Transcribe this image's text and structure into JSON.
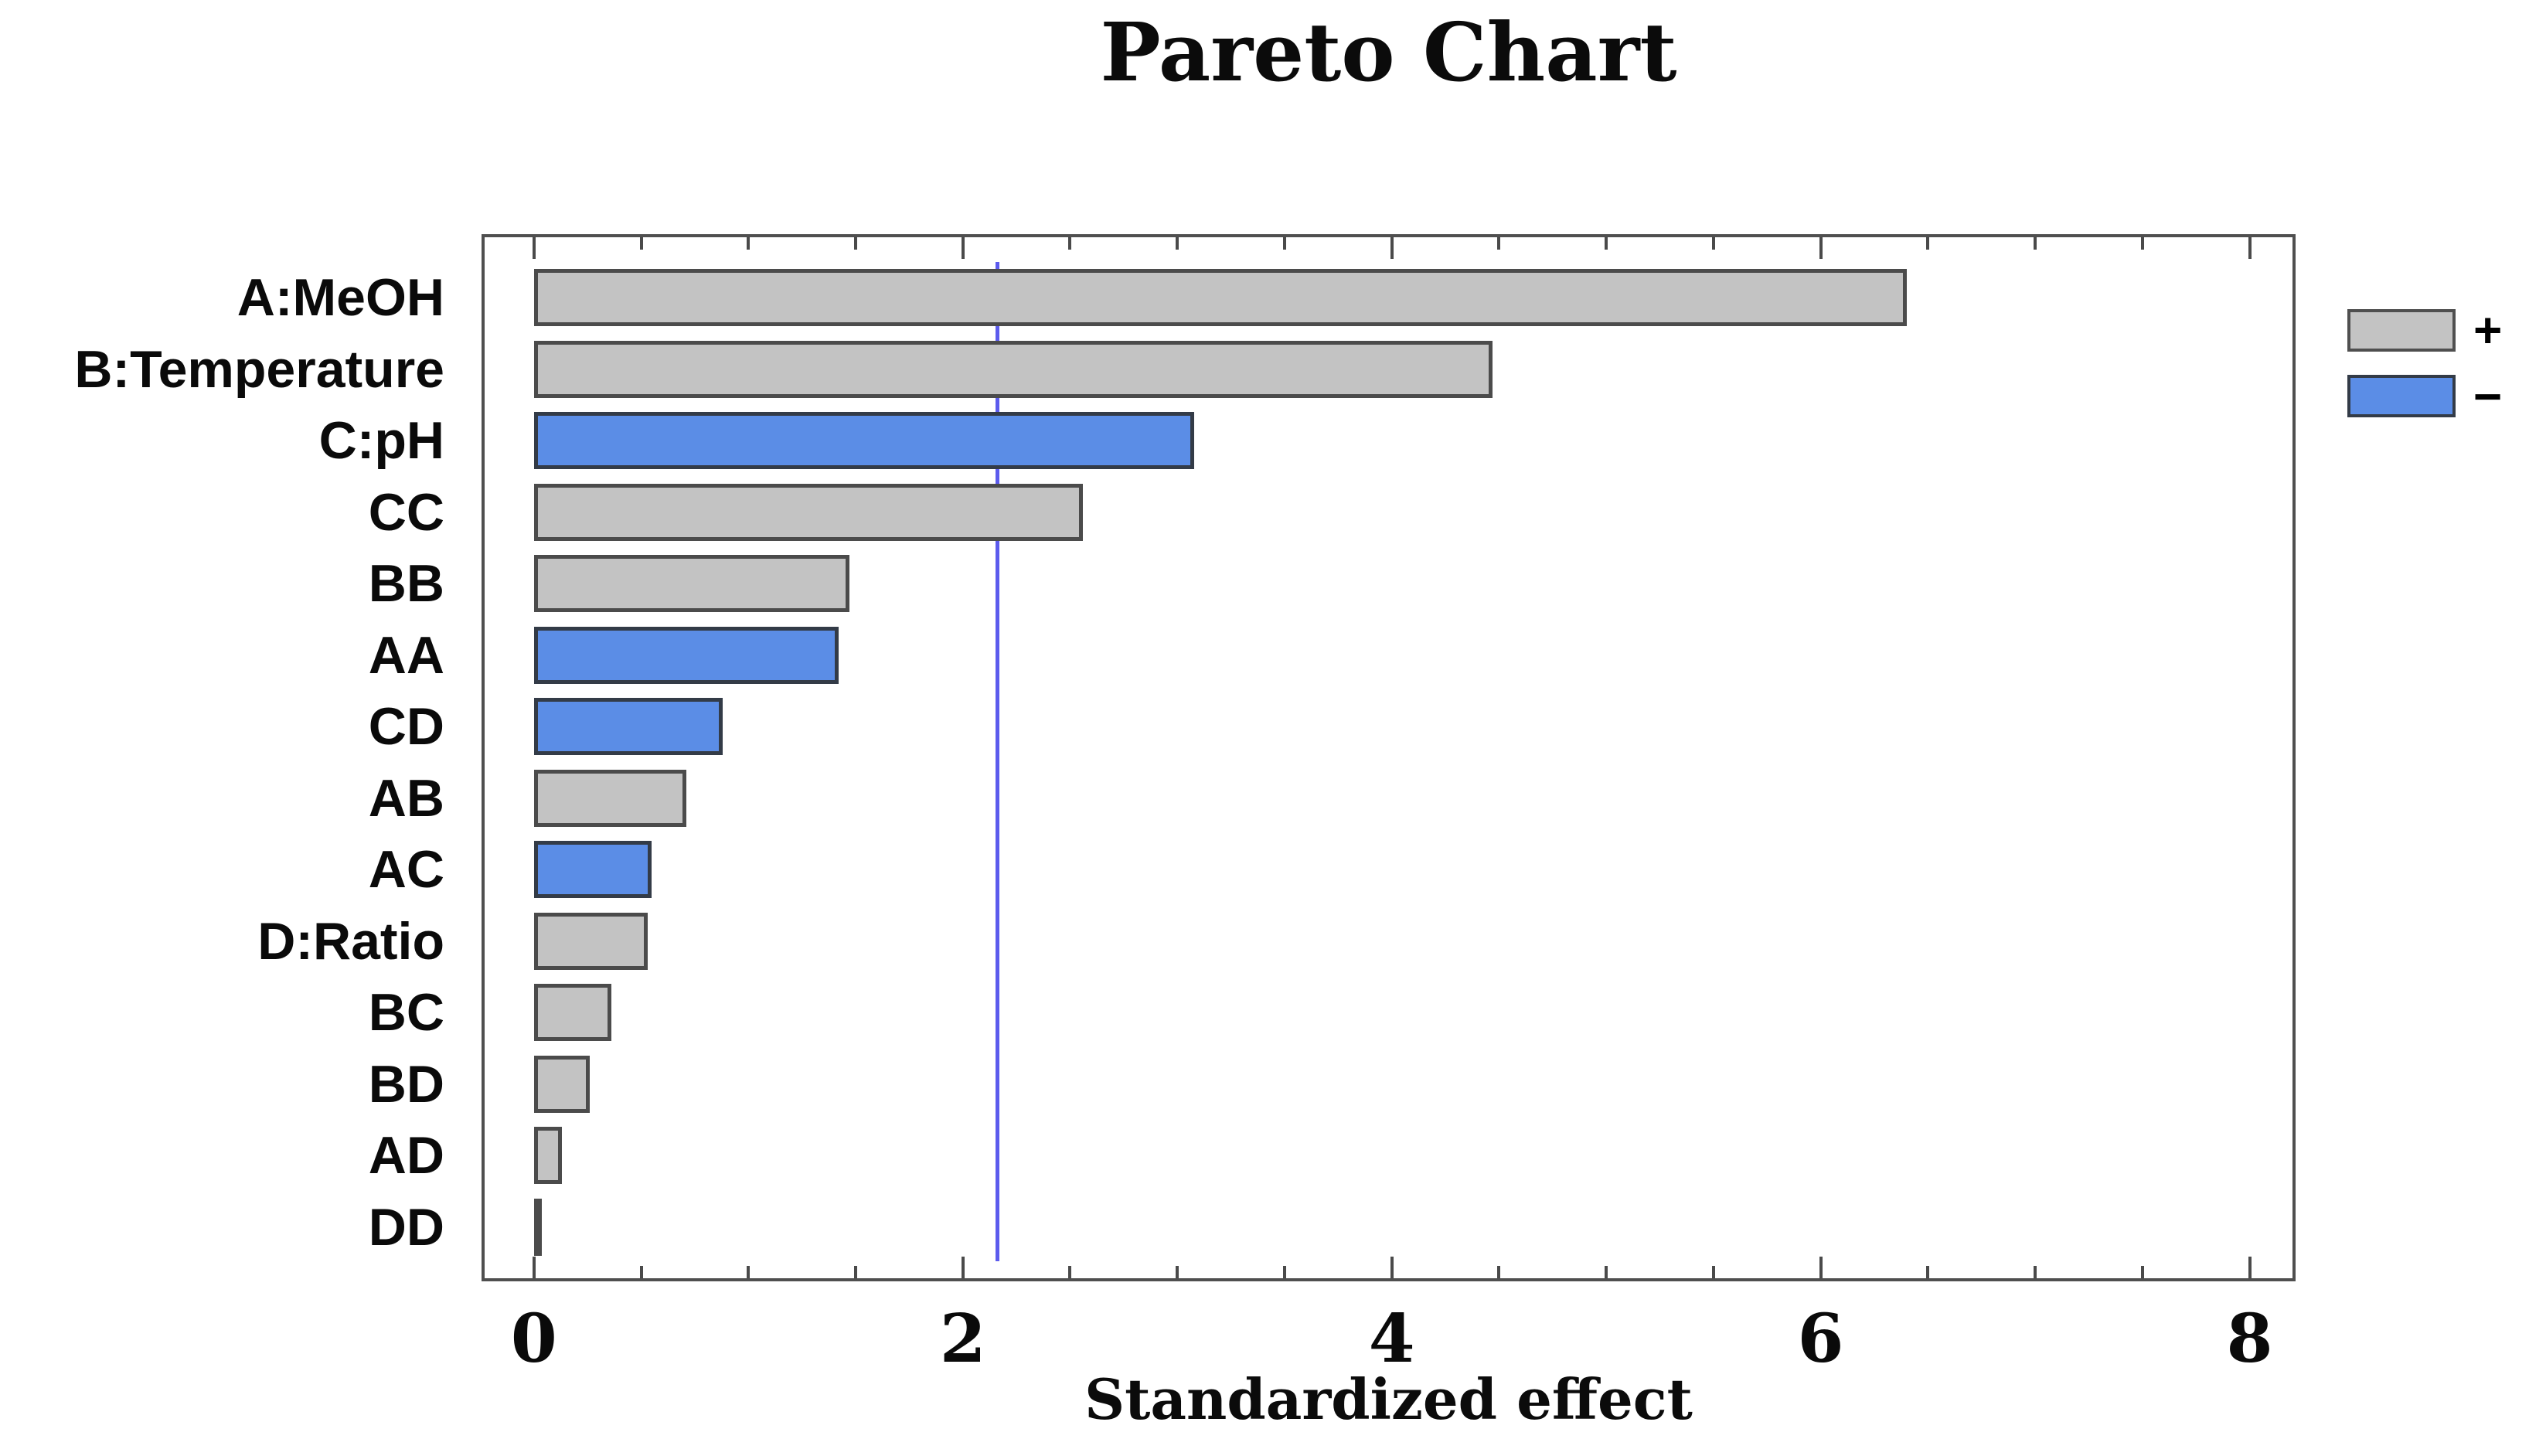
{
  "chart_data": {
    "type": "bar",
    "orientation": "horizontal",
    "title": "Pareto Chart",
    "xlabel": "Standardized effect",
    "categories": [
      "A:MeOH",
      "B:Temperature",
      "C:pH",
      "CC",
      "BB",
      "AA",
      "CD",
      "AB",
      "AC",
      "D:Ratio",
      "BC",
      "BD",
      "AD",
      "DD"
    ],
    "values": [
      6.4,
      4.47,
      3.08,
      2.56,
      1.47,
      1.42,
      0.88,
      0.71,
      0.55,
      0.53,
      0.36,
      0.26,
      0.13,
      0.015
    ],
    "signs": [
      "+",
      "+",
      "-",
      "+",
      "+",
      "-",
      "-",
      "+",
      "-",
      "+",
      "+",
      "+",
      "+",
      "+"
    ],
    "reference_line": 2.16,
    "xlim": [
      -0.23,
      8.2
    ],
    "x_major_ticks": [
      0,
      2,
      4,
      6,
      8
    ],
    "x_minor_step": 0.5,
    "grid": false,
    "legend": {
      "position": "right-top",
      "items": [
        {
          "label": "+",
          "color": "#c3c3c3"
        },
        {
          "label": "−",
          "color": "#5b8de6"
        }
      ]
    },
    "colors": {
      "positive_fill": "#c3c3c3",
      "negative_fill": "#5b8de6",
      "bar_border": "#3c3c3c",
      "reference_line": "#4544ea",
      "plot_border": "#4f4f4f"
    }
  }
}
